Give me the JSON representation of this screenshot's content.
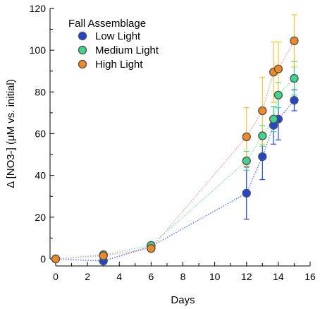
{
  "chart_data": {
    "type": "scatter",
    "xlabel": "Days",
    "ylabel": "Δ [NO3-] (μM vs. initial)",
    "xlim": [
      0,
      16
    ],
    "ylim": [
      0,
      120
    ],
    "xticks": [
      0,
      2,
      4,
      6,
      8,
      10,
      12,
      14,
      16
    ],
    "yticks": [
      0,
      20,
      40,
      60,
      80,
      100,
      120
    ],
    "grid": false,
    "legend": {
      "title": "Fall Assemblage",
      "position": "top-left"
    },
    "series": [
      {
        "name": "Low Light",
        "color": "#1f45d6",
        "line_color": "#5b7fe6",
        "points": [
          {
            "x": 0,
            "y": 0,
            "err": 0
          },
          {
            "x": 3,
            "y": -1,
            "err": 0
          },
          {
            "x": 6,
            "y": 6,
            "err": 0
          },
          {
            "x": 12,
            "y": 31.5,
            "err": 12.5
          },
          {
            "x": 13,
            "y": 49,
            "err": 11
          },
          {
            "x": 13.7,
            "y": 64,
            "err": 9
          },
          {
            "x": 14,
            "y": 67,
            "err": 10
          },
          {
            "x": 15,
            "y": 76,
            "err": 5
          }
        ]
      },
      {
        "name": "Medium Light",
        "color": "#3dd68c",
        "line_color": "#8fe0b4",
        "points": [
          {
            "x": 0,
            "y": 0,
            "err": 0
          },
          {
            "x": 3,
            "y": 2,
            "err": 0
          },
          {
            "x": 6,
            "y": 6.5,
            "err": 0
          },
          {
            "x": 12,
            "y": 47,
            "err": 4.5
          },
          {
            "x": 13,
            "y": 59,
            "err": 5
          },
          {
            "x": 13.7,
            "y": 67,
            "err": 6
          },
          {
            "x": 14,
            "y": 78.5,
            "err": 6
          },
          {
            "x": 15,
            "y": 86.5,
            "err": 8
          }
        ]
      },
      {
        "name": "High Light",
        "color": "#f5891f",
        "line_color": "#f0a8a0",
        "points": [
          {
            "x": 0,
            "y": 0,
            "err": 0
          },
          {
            "x": 3,
            "y": 1.5,
            "err": 0
          },
          {
            "x": 6,
            "y": 5,
            "err": 0
          },
          {
            "x": 12,
            "y": 58.5,
            "err": 14
          },
          {
            "x": 13,
            "y": 71,
            "err": 16
          },
          {
            "x": 13.7,
            "y": 89.5,
            "err": 14.5
          },
          {
            "x": 14,
            "y": 91,
            "err": 13
          },
          {
            "x": 15,
            "y": 104.5,
            "err": 12.5
          }
        ]
      }
    ],
    "errorbar_color": "#f5c23a"
  }
}
